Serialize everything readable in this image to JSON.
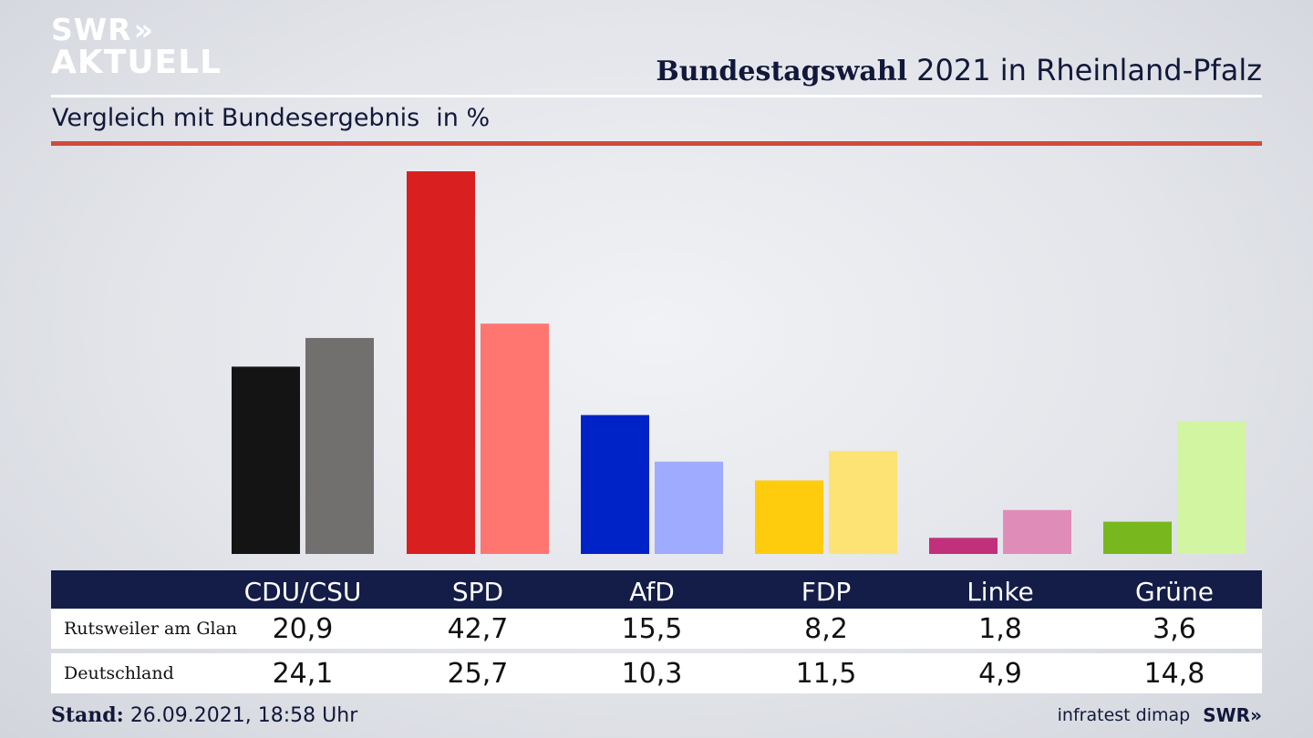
{
  "header": {
    "logo_line1": "SWR",
    "logo_line2": "AKTUELL",
    "logo_chevrons": "»",
    "title_bold": "Bundestagswahl",
    "title_rest": "2021 in Rheinland-Pfalz",
    "subtitle": "Vergleich mit Bundesergebnis",
    "subtitle_unit": "in %"
  },
  "chart_data": {
    "type": "bar",
    "title": "Bundestagswahl 2021 in Rheinland-Pfalz",
    "subtitle": "Vergleich mit Bundesergebnis",
    "unit": "in %",
    "categories": [
      "CDU/CSU",
      "SPD",
      "AfD",
      "FDP",
      "Linke",
      "Grüne"
    ],
    "series": [
      {
        "name": "Rutsweiler am Glan",
        "values": [
          20.9,
          42.7,
          15.5,
          8.2,
          1.8,
          3.6
        ]
      },
      {
        "name": "Deutschland",
        "values": [
          24.1,
          25.7,
          10.3,
          11.5,
          4.9,
          14.8
        ]
      }
    ],
    "colors": {
      "primary": [
        "#141414",
        "#d91f1f",
        "#0023c8",
        "#ffcc0d",
        "#c1307a",
        "#78b81e"
      ],
      "secondary": [
        "#72706e",
        "#ff7570",
        "#9fabff",
        "#fde274",
        "#e08cb8",
        "#d2f5a2"
      ]
    },
    "ylim": [
      0,
      43
    ],
    "grid": false,
    "legend": "table-below"
  },
  "table": {
    "rows": [
      {
        "label": "Rutsweiler am Glan",
        "values": [
          "20,9",
          "42,7",
          "15,5",
          "8,2",
          "1,8",
          "3,6"
        ]
      },
      {
        "label": "Deutschland",
        "values": [
          "24,1",
          "25,7",
          "10,3",
          "11,5",
          "4,9",
          "14,8"
        ]
      }
    ]
  },
  "footer": {
    "stand_label": "Stand:",
    "stand_value": "26.09.2021, 18:58 Uhr",
    "source": "infratest dimap",
    "brand": "SWR",
    "brand_chevrons": "»"
  },
  "colors": {
    "navy": "#141c48",
    "accent_red": "#d14a3a"
  }
}
